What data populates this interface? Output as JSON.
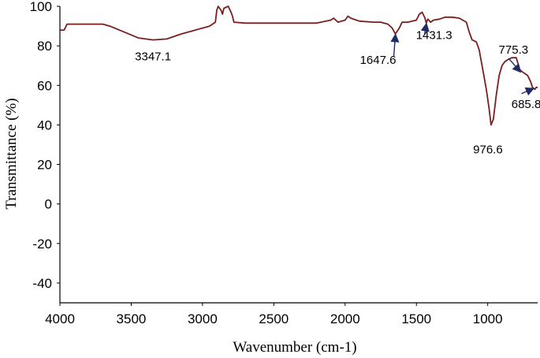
{
  "chart_data": {
    "type": "line",
    "title": "",
    "xlabel": "Wavenumber (cm-1)",
    "ylabel": "Transmittance (%)",
    "xlim": [
      4000,
      650
    ],
    "ylim": [
      -50,
      100
    ],
    "x_reversed": true,
    "xticks": [
      4000,
      3500,
      3000,
      2500,
      2000,
      1500,
      1000
    ],
    "yticks": [
      100,
      80,
      60,
      40,
      20,
      0,
      -20,
      -40
    ],
    "grid": false,
    "legend": "none",
    "line_color": "#7a1f1f",
    "arrow_color": "#1f2a66",
    "series": [
      {
        "x": [
          4000,
          3970,
          3950,
          3900,
          3800,
          3700,
          3650,
          3550,
          3450,
          3347.1,
          3250,
          3150,
          3050,
          2950,
          2910,
          2900,
          2890,
          2870,
          2860,
          2850,
          2820,
          2800,
          2790,
          2780,
          2700,
          2600,
          2500,
          2400,
          2300,
          2200,
          2100,
          2080,
          2050,
          2000,
          1980,
          1960,
          1900,
          1800,
          1750,
          1700,
          1670,
          1647.6,
          1620,
          1600,
          1560,
          1500,
          1480,
          1460,
          1440,
          1431.3,
          1420,
          1400,
          1380,
          1340,
          1300,
          1250,
          1200,
          1150,
          1130,
          1110,
          1080,
          1060,
          1040,
          1010,
          990,
          976.6,
          960,
          940,
          920,
          900,
          880,
          860,
          830,
          800,
          775.3,
          760,
          740,
          720,
          700,
          685.8,
          670,
          660,
          650
        ],
        "y": [
          88,
          88,
          91,
          91,
          91,
          91,
          90,
          87,
          84,
          83,
          83.5,
          86,
          88,
          90,
          92,
          98,
          100,
          98,
          96,
          99,
          100,
          97,
          95,
          92,
          91.5,
          91.5,
          91.5,
          91.5,
          91.5,
          91.5,
          93,
          94,
          92,
          93,
          95,
          94,
          92.5,
          92,
          92,
          91,
          89,
          86,
          89,
          92,
          92,
          93,
          96,
          97,
          94,
          91.5,
          93.5,
          92,
          93,
          93.5,
          94.5,
          94.5,
          94,
          92,
          87,
          83,
          82,
          78,
          70,
          58,
          48,
          40,
          43,
          55,
          65,
          70,
          72,
          73,
          74,
          74,
          68,
          67,
          66,
          65,
          62,
          59,
          58,
          59,
          59
        ]
      }
    ],
    "annotations": [
      {
        "text": "3347.1",
        "x": 3347.1,
        "y": 83
      },
      {
        "text": "1647.6",
        "x": 1647.6,
        "y": 86
      },
      {
        "text": "1431.3",
        "x": 1431.3,
        "y": 91.5
      },
      {
        "text": "976.6",
        "x": 976.6,
        "y": 40
      },
      {
        "text": "775.3",
        "x": 775.3,
        "y": 68
      },
      {
        "text": "685.8",
        "x": 685.8,
        "y": 59
      }
    ]
  }
}
